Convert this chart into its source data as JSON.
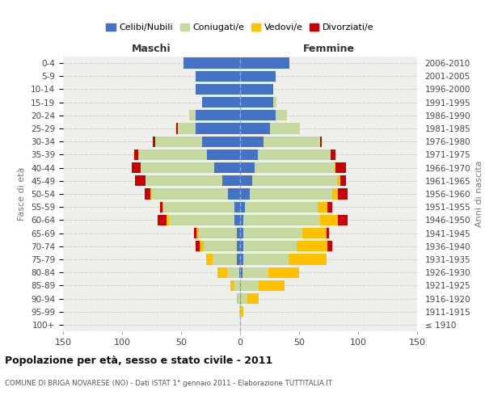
{
  "age_groups": [
    "100+",
    "95-99",
    "90-94",
    "85-89",
    "80-84",
    "75-79",
    "70-74",
    "65-69",
    "60-64",
    "55-59",
    "50-54",
    "45-49",
    "40-44",
    "35-39",
    "30-34",
    "25-29",
    "20-24",
    "15-19",
    "10-14",
    "5-9",
    "0-4"
  ],
  "birth_years": [
    "≤ 1910",
    "1911-1915",
    "1916-1920",
    "1921-1925",
    "1926-1930",
    "1931-1935",
    "1936-1940",
    "1941-1945",
    "1946-1950",
    "1951-1955",
    "1956-1960",
    "1961-1965",
    "1966-1970",
    "1971-1975",
    "1976-1980",
    "1981-1985",
    "1986-1990",
    "1991-1995",
    "1996-2000",
    "2001-2005",
    "2006-2010"
  ],
  "males": {
    "celibe": [
      0,
      0,
      0,
      0,
      1,
      3,
      3,
      3,
      5,
      5,
      10,
      15,
      22,
      28,
      32,
      38,
      38,
      32,
      38,
      38,
      48
    ],
    "coniugato": [
      0,
      1,
      2,
      5,
      10,
      20,
      28,
      32,
      55,
      60,
      65,
      65,
      62,
      58,
      40,
      15,
      5,
      0,
      0,
      0,
      0
    ],
    "vedovo": [
      0,
      0,
      1,
      3,
      8,
      6,
      3,
      2,
      2,
      1,
      1,
      0,
      0,
      0,
      0,
      0,
      0,
      0,
      0,
      0,
      0
    ],
    "divorziato": [
      0,
      0,
      0,
      0,
      0,
      0,
      4,
      2,
      8,
      2,
      5,
      9,
      8,
      4,
      2,
      1,
      0,
      0,
      0,
      0,
      0
    ]
  },
  "females": {
    "nubile": [
      0,
      0,
      1,
      1,
      2,
      3,
      3,
      3,
      3,
      4,
      8,
      10,
      12,
      15,
      20,
      25,
      30,
      28,
      28,
      30,
      42
    ],
    "coniugata": [
      1,
      1,
      5,
      15,
      22,
      38,
      45,
      50,
      65,
      62,
      70,
      72,
      68,
      62,
      48,
      26,
      10,
      3,
      0,
      0,
      0
    ],
    "vedova": [
      0,
      2,
      10,
      22,
      26,
      32,
      26,
      20,
      15,
      8,
      5,
      3,
      1,
      0,
      0,
      0,
      0,
      0,
      0,
      0,
      0
    ],
    "divorziata": [
      0,
      0,
      0,
      0,
      0,
      0,
      4,
      2,
      8,
      4,
      8,
      5,
      9,
      4,
      1,
      0,
      0,
      0,
      0,
      0,
      0
    ]
  },
  "colors": {
    "celibe": "#4472C4",
    "coniugato": "#c5d9a0",
    "vedovo": "#ffc000",
    "divorziato": "#cc0000"
  },
  "xlim": 150,
  "xtick_step": 50,
  "title": "Popolazione per età, sesso e stato civile - 2011",
  "subtitle": "COMUNE DI BRIGA NOVARESE (NO) - Dati ISTAT 1° gennaio 2011 - Elaborazione TUTTITALIA.IT",
  "ylabel": "Fasce di età",
  "ylabel_right": "Anni di nascita",
  "legend_labels": [
    "Celibi/Nubili",
    "Coniugati/e",
    "Vedovi/e",
    "Divorziati/e"
  ],
  "maschi_label": "Maschi",
  "femmine_label": "Femmine",
  "bg_color": "#ffffff",
  "plot_bg": "#efefeb"
}
